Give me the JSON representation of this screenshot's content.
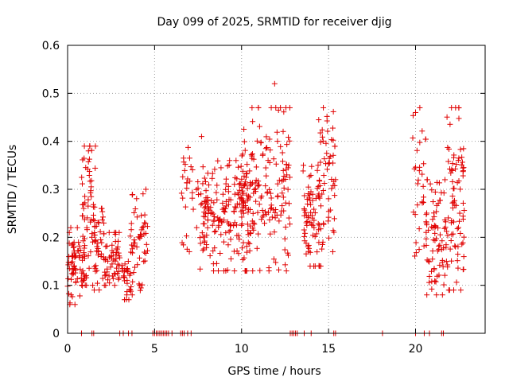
{
  "chart_data": {
    "type": "scatter",
    "title": "Day 099 of 2025, SRMTID for receiver djig",
    "xlabel": "GPS time / hours",
    "ylabel": "SRMTID / TECUs",
    "xlim": [
      0,
      24
    ],
    "ylim": [
      0,
      0.6
    ],
    "x_ticks": [
      0,
      5,
      10,
      15,
      20
    ],
    "x_tick_labels": [
      "0",
      "5",
      "10",
      "15",
      "20"
    ],
    "y_ticks": [
      0,
      0.1,
      0.2,
      0.3,
      0.4,
      0.5,
      0.6
    ],
    "y_tick_labels": [
      "0",
      "0.1",
      "0.2",
      "0.3",
      "0.4",
      "0.5",
      "0.6"
    ],
    "grid": true,
    "marker": "+",
    "color": "#e00000",
    "series": [
      {
        "name": "SRMTID",
        "clusters": [
          {
            "x_range": [
              0.0,
              1.0
            ],
            "y_range": [
              0.06,
              0.22
            ],
            "count": 70
          },
          {
            "x_range": [
              0.8,
              1.6
            ],
            "y_range": [
              0.1,
              0.39
            ],
            "count": 60
          },
          {
            "x_range": [
              1.5,
              2.1
            ],
            "y_range": [
              0.09,
              0.26
            ],
            "count": 40
          },
          {
            "x_range": [
              2.1,
              3.0
            ],
            "y_range": [
              0.1,
              0.21
            ],
            "count": 55
          },
          {
            "x_range": [
              3.1,
              3.6
            ],
            "y_range": [
              0.07,
              0.15
            ],
            "count": 25
          },
          {
            "x_range": [
              3.6,
              4.6
            ],
            "y_range": [
              0.08,
              0.3
            ],
            "count": 55
          },
          {
            "x_range": [
              6.5,
              7.6
            ],
            "y_range": [
              0.17,
              0.41
            ],
            "count": 30
          },
          {
            "x_range": [
              7.6,
              10.5
            ],
            "y_range": [
              0.13,
              0.36
            ],
            "count": 180
          },
          {
            "x_range": [
              10.0,
              12.8
            ],
            "y_range": [
              0.13,
              0.47
            ],
            "count": 170
          },
          {
            "x_range": [
              13.5,
              14.7
            ],
            "y_range": [
              0.14,
              0.35
            ],
            "count": 70
          },
          {
            "x_range": [
              14.4,
              15.4
            ],
            "y_range": [
              0.17,
              0.47
            ],
            "count": 60
          },
          {
            "x_range": [
              19.8,
              20.6
            ],
            "y_range": [
              0.15,
              0.47
            ],
            "count": 30
          },
          {
            "x_range": [
              20.6,
              21.8
            ],
            "y_range": [
              0.08,
              0.32
            ],
            "count": 80
          },
          {
            "x_range": [
              21.8,
              22.8
            ],
            "y_range": [
              0.09,
              0.47
            ],
            "count": 80
          }
        ],
        "points": [
          [
            11.9,
            0.52
          ],
          [
            10.6,
            0.47
          ],
          [
            14.7,
            0.47
          ],
          [
            20.0,
            0.46
          ],
          [
            22.3,
            0.47
          ],
          [
            1.6,
            0.39
          ],
          [
            7.7,
            0.41
          ],
          [
            1.2,
            0.38
          ],
          [
            4.5,
            0.3
          ],
          [
            0.1,
            0.21
          ],
          [
            0.2,
            0.08
          ],
          [
            3.4,
            0.08
          ],
          [
            21.2,
            0.08
          ],
          [
            22.6,
            0.09
          ],
          [
            12.6,
            0.33
          ]
        ],
        "zero_points_x": [
          0.8,
          1.4,
          1.5,
          3.0,
          3.2,
          3.5,
          3.7,
          4.9,
          5.0,
          5.1,
          5.2,
          5.3,
          5.4,
          5.5,
          5.6,
          5.7,
          5.8,
          6.0,
          6.5,
          6.6,
          6.7,
          6.9,
          7.1,
          12.8,
          12.9,
          13.0,
          13.1,
          13.2,
          13.6,
          14.0,
          15.3,
          15.4,
          18.1,
          20.0,
          20.5,
          20.8,
          21.5,
          21.6
        ]
      }
    ]
  }
}
